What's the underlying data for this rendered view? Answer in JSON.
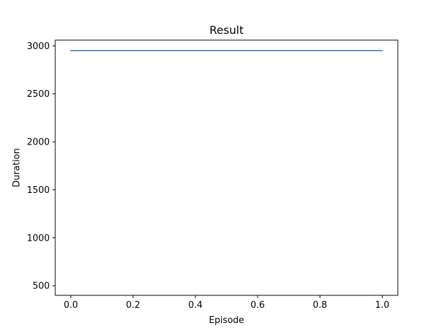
{
  "chart_data": {
    "type": "line",
    "title": "Result",
    "xlabel": "Episode",
    "ylabel": "Duration",
    "xlim": [
      -0.05,
      1.05
    ],
    "ylim": [
      400,
      3060
    ],
    "xticks": [
      0.0,
      0.2,
      0.4,
      0.6,
      0.8,
      1.0
    ],
    "xtick_labels": [
      "0.0",
      "0.2",
      "0.4",
      "0.6",
      "0.8",
      "1.0"
    ],
    "yticks": [
      500,
      1000,
      1500,
      2000,
      2500,
      3000
    ],
    "ytick_labels": [
      "500",
      "1000",
      "1500",
      "2000",
      "2500",
      "3000"
    ],
    "grid": false,
    "series": [
      {
        "x": [
          0,
          1
        ],
        "values": [
          2950,
          2950
        ],
        "color": "#1f77b4"
      }
    ]
  }
}
